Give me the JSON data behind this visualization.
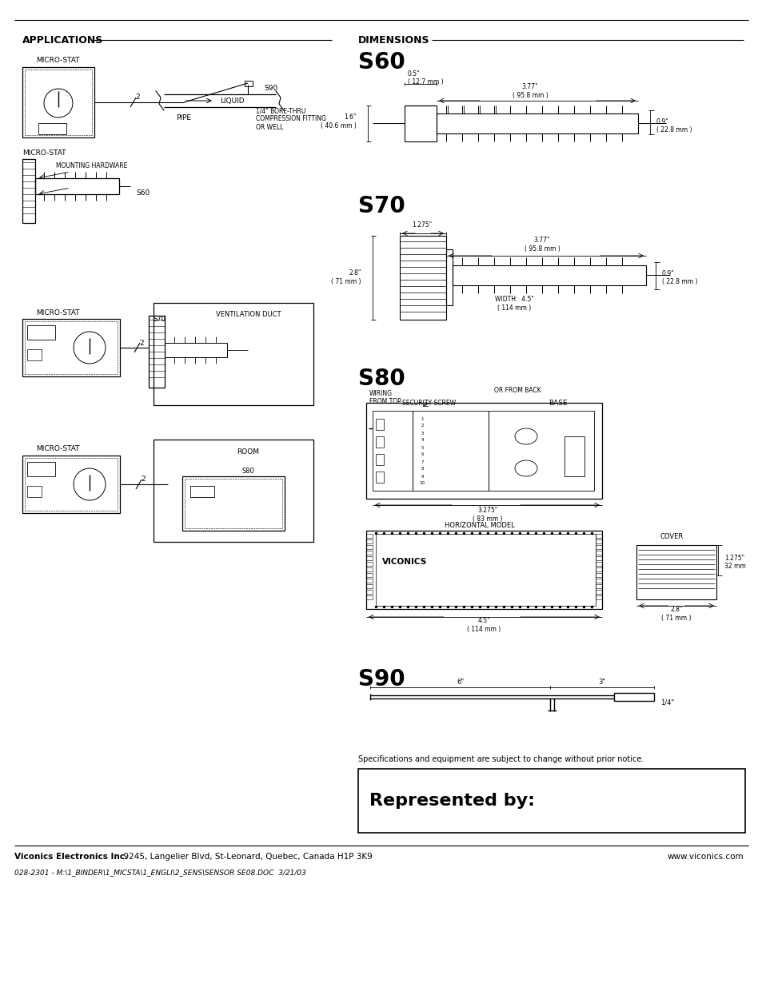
{
  "bg_color": "#ffffff",
  "text_color": "#000000",
  "header_left": "APPLICATIONS",
  "header_right": "DIMENSIONS",
  "footer_company": "Viconics Electronics Inc.",
  "footer_address": "9245, Langelier Blvd, St-Leonard, Quebec, Canada H1P 3K9",
  "footer_website": "www.viconics.com",
  "footer_doc": "028-2301 - M:\\1_BINDER\\1_MICSTA\\1_ENGLI\\2_SENS\\SENSOR SE08.DOC  3/21/03",
  "represented_by_text": "Represented by:",
  "specs_note": "Specifications and equipment are subject to change without prior notice.",
  "s60_label": "S60",
  "s70_label": "S70",
  "s80_label": "S80",
  "s90_label": "S90",
  "app1_microstat": "MICRO-STAT",
  "app1_s90": "S90",
  "app1_liquid": "LIQUID",
  "app1_pipe": "PIPE",
  "app1_fitting": "1/4\" BORE-THRU\nCOMPRESSION FITTING\nOR WELL",
  "app2_microstat": "MICRO-STAT",
  "app2_s60": "S60",
  "app2_mounting": "MOUNTING HARDWARE",
  "app3_microstat": "MICRO-STAT",
  "app3_s70": "S70",
  "app3_duct": "VENTILATION DUCT",
  "app4_microstat": "MICRO-STAT",
  "app4_s80": "S80",
  "app4_room": "ROOM"
}
